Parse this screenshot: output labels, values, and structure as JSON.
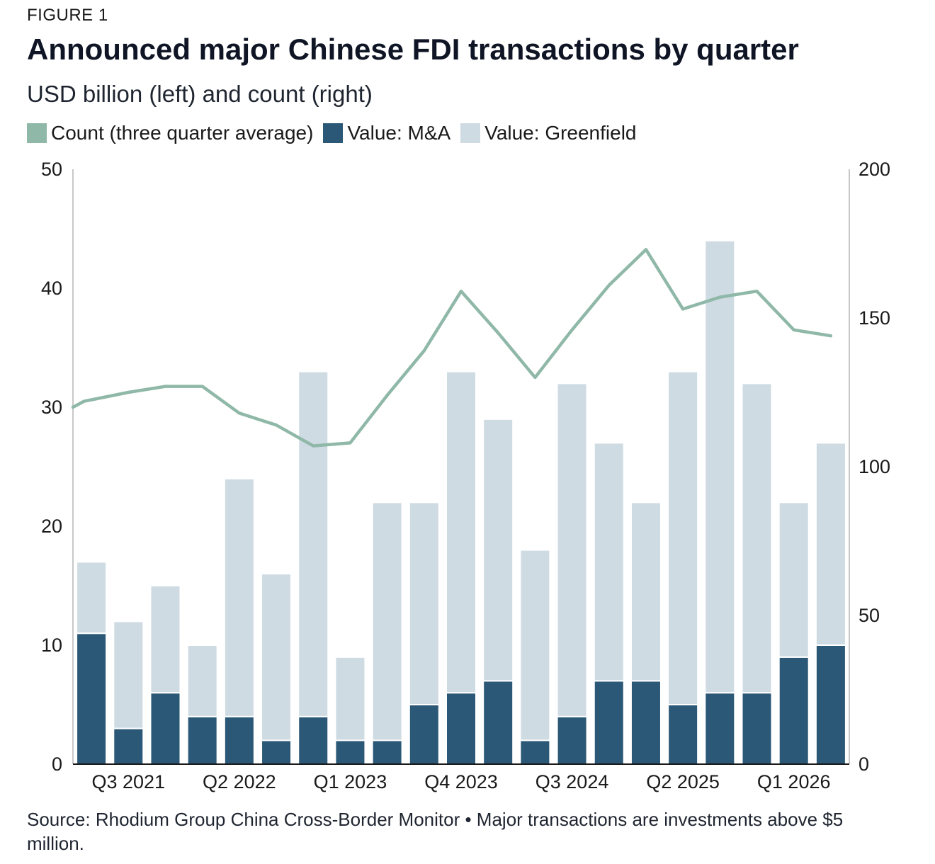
{
  "header": {
    "eyebrow": "FIGURE 1",
    "title": "Announced major Chinese FDI transactions by quarter",
    "subtitle": "USD billion (left) and count (right)"
  },
  "legend": [
    {
      "label": "Count (three quarter average)",
      "color": "#8fb8a8"
    },
    {
      "label": "Value: M&A",
      "color": "#2b5876"
    },
    {
      "label": "Value: Greenfield",
      "color": "#cfdbe3"
    }
  ],
  "footer": {
    "source": "Source: Rhodium Group China Cross-Border Monitor • Major transactions are investments above $5 million."
  },
  "chart_data": {
    "type": "bar",
    "stacked": true,
    "quarters": 21,
    "x_tick_labels": [
      "Q3 2021",
      "Q2 2022",
      "Q1 2023",
      "Q4 2023",
      "Q3 2024",
      "Q2 2025",
      "Q1 2026"
    ],
    "x_tick_indices": [
      1,
      4,
      7,
      10,
      13,
      16,
      19
    ],
    "y_left": {
      "min": 0,
      "max": 50,
      "ticks": [
        0,
        10,
        20,
        30,
        40,
        50
      ]
    },
    "y_right": {
      "min": 0,
      "max": 200,
      "ticks": [
        0,
        50,
        100,
        150,
        200
      ]
    },
    "series": [
      {
        "name": "Value: M&A",
        "axis": "left",
        "color": "#2b5876",
        "values": [
          11,
          3,
          6,
          4,
          4,
          2,
          4,
          2,
          2,
          5,
          6,
          7,
          2,
          4,
          7,
          7,
          5,
          6,
          6,
          9,
          10
        ]
      },
      {
        "name": "Value: Greenfield",
        "axis": "left",
        "color": "#cfdbe3",
        "values": [
          6,
          9,
          9,
          6,
          20,
          14,
          29,
          7,
          20,
          17,
          27,
          22,
          16,
          28,
          20,
          15,
          28,
          38,
          26,
          13,
          17
        ]
      },
      {
        "name": "Count (three quarter average)",
        "axis": "right",
        "type": "line",
        "color": "#8fb8a8",
        "x_positions": [
          -0.05,
          0.3,
          1.5,
          2.5,
          3.5,
          4.5,
          5.5,
          6.5,
          7.5,
          8.5,
          9.5,
          10.5,
          11.5,
          12.5,
          13.5,
          14.5,
          15.5,
          16.5,
          17.5,
          18.5,
          19.5,
          20.5
        ],
        "values": [
          120,
          122,
          125,
          127,
          127,
          118,
          114,
          107,
          108,
          124,
          139,
          159,
          145,
          130,
          146,
          161,
          173,
          153,
          157,
          159,
          146,
          144
        ]
      }
    ]
  }
}
